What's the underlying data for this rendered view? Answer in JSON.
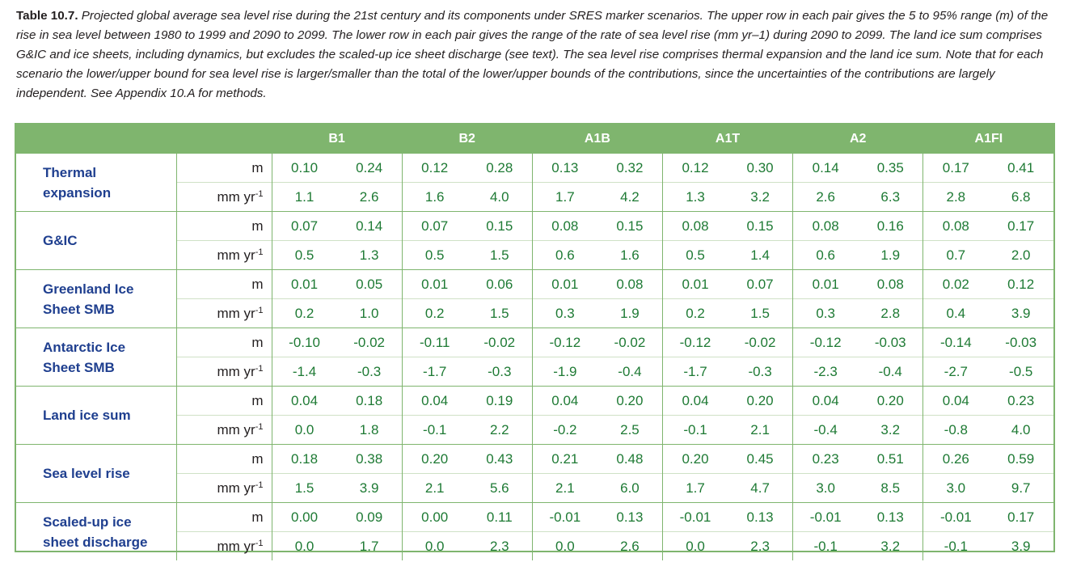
{
  "caption": {
    "label": "Table 10.7.",
    "text": "Projected global average sea level rise during the 21st century and its components under SRES marker scenarios. The upper row in each pair gives the 5 to 95% range (m) of the rise in sea level between 1980 to 1999 and 2090 to 2099. The lower row in each pair gives the range of the rate of sea level rise (mm yr–1) during 2090 to 2099. The land ice sum comprises G&IC and ice sheets, including dynamics, but excludes the scaled-up ice sheet discharge (see text). The sea level rise comprises thermal expansion and the land ice sum. Note that for each scenario the lower/upper bound for sea level rise is larger/smaller than the total of the lower/upper bounds of the contributions, since the uncertainties of the contributions are largely independent. See Appendix 10.A for methods."
  },
  "scenarios": [
    "B1",
    "B2",
    "A1B",
    "A1T",
    "A2",
    "A1FI"
  ],
  "units": {
    "m": "m",
    "rate": "mm yr",
    "rate_sup": "-1"
  },
  "rows": [
    {
      "label_lines": [
        "Thermal",
        "expansion"
      ],
      "m": [
        "0.10",
        "0.24",
        "0.12",
        "0.28",
        "0.13",
        "0.32",
        "0.12",
        "0.30",
        "0.14",
        "0.35",
        "0.17",
        "0.41"
      ],
      "rate": [
        "1.1",
        "2.6",
        "1.6",
        "4.0",
        "1.7",
        "4.2",
        "1.3",
        "3.2",
        "2.6",
        "6.3",
        "2.8",
        "6.8"
      ]
    },
    {
      "label_lines": [
        "G&IC"
      ],
      "m": [
        "0.07",
        "0.14",
        "0.07",
        "0.15",
        "0.08",
        "0.15",
        "0.08",
        "0.15",
        "0.08",
        "0.16",
        "0.08",
        "0.17"
      ],
      "rate": [
        "0.5",
        "1.3",
        "0.5",
        "1.5",
        "0.6",
        "1.6",
        "0.5",
        "1.4",
        "0.6",
        "1.9",
        "0.7",
        "2.0"
      ]
    },
    {
      "label_lines": [
        "Greenland Ice",
        "Sheet SMB"
      ],
      "m": [
        "0.01",
        "0.05",
        "0.01",
        "0.06",
        "0.01",
        "0.08",
        "0.01",
        "0.07",
        "0.01",
        "0.08",
        "0.02",
        "0.12"
      ],
      "rate": [
        "0.2",
        "1.0",
        "0.2",
        "1.5",
        "0.3",
        "1.9",
        "0.2",
        "1.5",
        "0.3",
        "2.8",
        "0.4",
        "3.9"
      ]
    },
    {
      "label_lines": [
        "Antarctic Ice",
        "Sheet SMB"
      ],
      "m": [
        "-0.10",
        "-0.02",
        "-0.11",
        "-0.02",
        "-0.12",
        "-0.02",
        "-0.12",
        "-0.02",
        "-0.12",
        "-0.03",
        "-0.14",
        "-0.03"
      ],
      "rate": [
        "-1.4",
        "-0.3",
        "-1.7",
        "-0.3",
        "-1.9",
        "-0.4",
        "-1.7",
        "-0.3",
        "-2.3",
        "-0.4",
        "-2.7",
        "-0.5"
      ]
    },
    {
      "label_lines": [
        "Land ice sum"
      ],
      "m": [
        "0.04",
        "0.18",
        "0.04",
        "0.19",
        "0.04",
        "0.20",
        "0.04",
        "0.20",
        "0.04",
        "0.20",
        "0.04",
        "0.23"
      ],
      "rate": [
        "0.0",
        "1.8",
        "-0.1",
        "2.2",
        "-0.2",
        "2.5",
        "-0.1",
        "2.1",
        "-0.4",
        "3.2",
        "-0.8",
        "4.0"
      ]
    },
    {
      "label_lines": [
        "Sea level rise"
      ],
      "m": [
        "0.18",
        "0.38",
        "0.20",
        "0.43",
        "0.21",
        "0.48",
        "0.20",
        "0.45",
        "0.23",
        "0.51",
        "0.26",
        "0.59"
      ],
      "rate": [
        "1.5",
        "3.9",
        "2.1",
        "5.6",
        "2.1",
        "6.0",
        "1.7",
        "4.7",
        "3.0",
        "8.5",
        "3.0",
        "9.7"
      ]
    },
    {
      "label_lines": [
        "Scaled-up ice",
        "sheet discharge"
      ],
      "m": [
        "0.00",
        "0.09",
        "0.00",
        "0.11",
        "-0.01",
        "0.13",
        "-0.01",
        "0.13",
        "-0.01",
        "0.13",
        "-0.01",
        "0.17"
      ],
      "rate": [
        "0.0",
        "1.7",
        "0.0",
        "2.3",
        "0.0",
        "2.6",
        "0.0",
        "2.3",
        "-0.1",
        "3.2",
        "-0.1",
        "3.9"
      ]
    }
  ],
  "colors": {
    "header_bg": "#7fb56e",
    "label_text": "#1f3f8f",
    "value_text": "#1e7a34"
  }
}
